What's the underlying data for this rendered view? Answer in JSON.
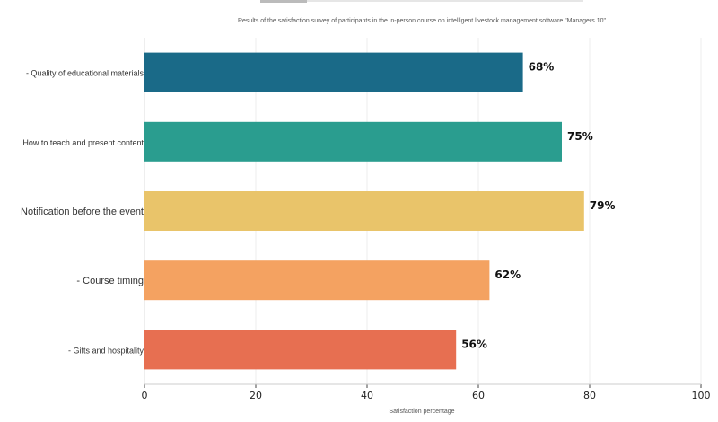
{
  "chart_data": {
    "type": "bar",
    "orientation": "horizontal",
    "title": "Results of the satisfaction survey of participants in the in-person course on intelligent livestock management software \"Managers 10\"",
    "xlabel": "Satisfaction percentage",
    "ylabel": "",
    "xlim": [
      0,
      100
    ],
    "xticks": [
      0,
      20,
      40,
      60,
      80,
      100
    ],
    "grid": true,
    "categories": [
      "- Quality of educational materials",
      "How to teach and present content",
      "Notification before the event",
      "- Course timing",
      "- Gifts and hospitality"
    ],
    "values": [
      68,
      75,
      79,
      62,
      56
    ],
    "value_labels": [
      "68%",
      "75%",
      "79%",
      "62%",
      "56%"
    ],
    "colors": [
      "#1a6a88",
      "#2a9d8f",
      "#e9c46a",
      "#f4a261",
      "#e76f51"
    ]
  }
}
